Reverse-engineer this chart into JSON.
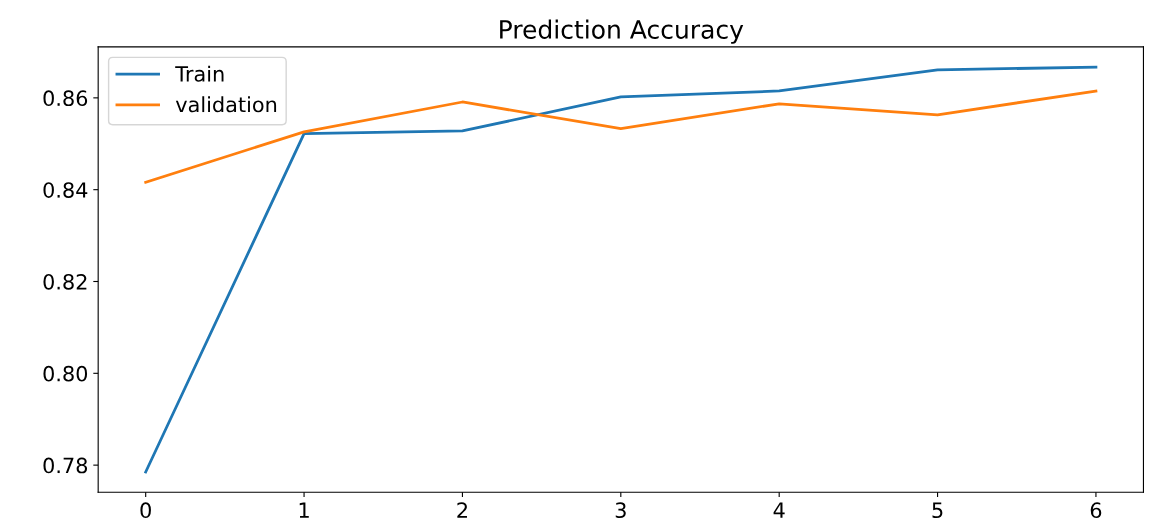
{
  "chart_data": {
    "type": "line",
    "title": "Prediction Accuracy",
    "x": [
      0,
      1,
      2,
      3,
      4,
      5,
      6
    ],
    "series": [
      {
        "name": "Train",
        "color": "#1f77b4",
        "values": [
          0.7785,
          0.8522,
          0.8528,
          0.8602,
          0.8615,
          0.8661,
          0.8667
        ]
      },
      {
        "name": "validation",
        "color": "#ff7f0e",
        "values": [
          0.8416,
          0.8526,
          0.8591,
          0.8533,
          0.8587,
          0.8563,
          0.8615
        ]
      }
    ],
    "xlim": [
      -0.3,
      6.3
    ],
    "ylim": [
      0.7741,
      0.8711
    ],
    "xticks": [
      0,
      1,
      2,
      3,
      4,
      5,
      6
    ],
    "yticks": [
      {
        "value": 0.78,
        "label": "0.78"
      },
      {
        "value": 0.8,
        "label": "0.80"
      },
      {
        "value": 0.82,
        "label": "0.82"
      },
      {
        "value": 0.84,
        "label": "0.84"
      },
      {
        "value": 0.86,
        "label": "0.86"
      }
    ],
    "legend": "top left",
    "grid": false,
    "marker": "none",
    "line_style": "solid"
  }
}
